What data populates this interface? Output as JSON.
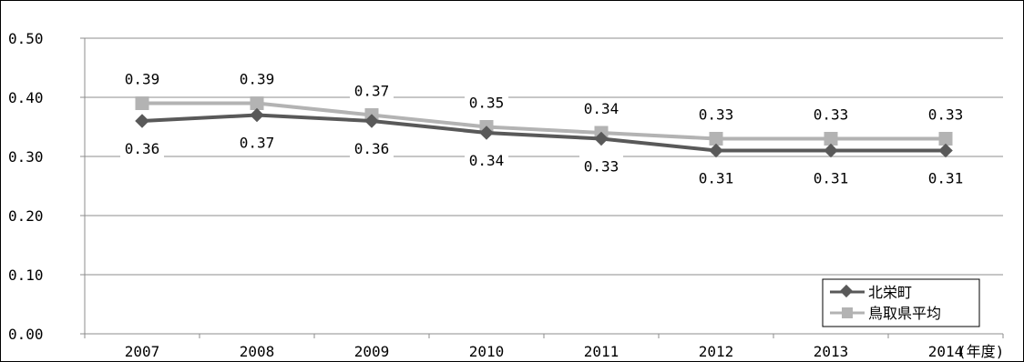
{
  "chart_data": {
    "type": "line",
    "categories": [
      "2007",
      "2008",
      "2009",
      "2010",
      "2011",
      "2012",
      "2013",
      "2014"
    ],
    "x_unit_label": "(年度)",
    "ylim": [
      0,
      0.5
    ],
    "yticks": [
      "0.00",
      "0.10",
      "0.20",
      "0.30",
      "0.40",
      "0.50"
    ],
    "grid": true,
    "legend_position": "bottom-right",
    "series": [
      {
        "name": "北栄町",
        "values": [
          0.36,
          0.37,
          0.36,
          0.34,
          0.33,
          0.31,
          0.31,
          0.31
        ],
        "labels": [
          "0.36",
          "0.37",
          "0.36",
          "0.34",
          "0.33",
          "0.31",
          "0.31",
          "0.31"
        ],
        "color": "#595959",
        "marker": "diamond"
      },
      {
        "name": "鳥取県平均",
        "values": [
          0.39,
          0.39,
          0.37,
          0.35,
          0.34,
          0.33,
          0.33,
          0.33
        ],
        "labels": [
          "0.39",
          "0.39",
          "0.37",
          "0.35",
          "0.34",
          "0.33",
          "0.33",
          "0.33"
        ],
        "color": "#b3b3b3",
        "marker": "square"
      }
    ]
  }
}
